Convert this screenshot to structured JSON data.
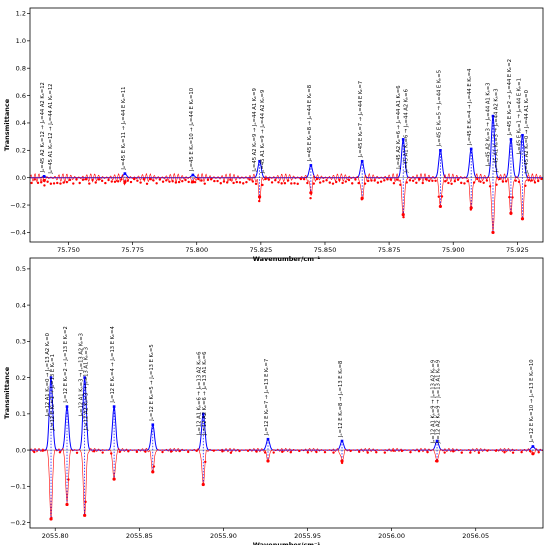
{
  "chart_data": [
    {
      "type": "line",
      "panel": "top",
      "xlabel": "Wavenumber/cm⁻¹",
      "ylabel": "Transmittance",
      "xlim": [
        75.735,
        75.935
      ],
      "ylim": [
        -0.47,
        1.24
      ],
      "xticks": [
        75.75,
        75.775,
        75.8,
        75.825,
        75.85,
        75.875,
        75.9,
        75.925
      ],
      "xtick_labels": [
        "75.750",
        "75.775",
        "75.800",
        "75.825",
        "75.850",
        "75.875",
        "75.900",
        "75.925"
      ],
      "yticks": [
        -0.4,
        -0.2,
        0.0,
        0.2,
        0.4,
        0.6,
        0.8,
        1.0,
        1.2
      ],
      "ytick_labels": [
        "−0.4",
        "−0.2",
        "0.0",
        "0.2",
        "0.4",
        "0.6",
        "0.8",
        "1.0",
        "1.2"
      ],
      "series": [
        {
          "role": "calculated",
          "color": "#0000ff",
          "peaks": [
            {
              "x": 75.7405,
              "y": 0.01
            },
            {
              "x": 75.772,
              "y": 0.03
            },
            {
              "x": 75.7985,
              "y": 0.02
            },
            {
              "x": 75.8245,
              "y": 0.12
            },
            {
              "x": 75.8445,
              "y": 0.09
            },
            {
              "x": 75.8645,
              "y": 0.12
            },
            {
              "x": 75.8805,
              "y": 0.28
            },
            {
              "x": 75.895,
              "y": 0.2
            },
            {
              "x": 75.907,
              "y": 0.21
            },
            {
              "x": 75.9155,
              "y": 0.45
            },
            {
              "x": 75.9225,
              "y": 0.28
            },
            {
              "x": 75.927,
              "y": 0.31
            }
          ]
        },
        {
          "role": "observed",
          "color": "#ff0000",
          "points": [
            {
              "x": 75.7405,
              "y": -0.02
            },
            {
              "x": 75.772,
              "y": -0.03
            },
            {
              "x": 75.7985,
              "y": -0.03
            },
            {
              "x": 75.8245,
              "y": -0.14
            },
            {
              "x": 75.8445,
              "y": -0.11
            },
            {
              "x": 75.8645,
              "y": -0.15
            },
            {
              "x": 75.8805,
              "y": -0.27
            },
            {
              "x": 75.895,
              "y": -0.21
            },
            {
              "x": 75.907,
              "y": -0.22
            },
            {
              "x": 75.9155,
              "y": -0.4
            },
            {
              "x": 75.9225,
              "y": -0.26
            },
            {
              "x": 75.927,
              "y": -0.3
            }
          ]
        }
      ],
      "annotations": [
        {
          "x": 75.7405,
          "text": "Jₑ=45 A2 Kₕ=12 → Jₑ=44 A2 Kₕ=12"
        },
        {
          "x": 75.7435,
          "text": "Jₑ=45 A1 Kₕ=12 → Jₑ=44 A1 Kₕ=12"
        },
        {
          "x": 75.772,
          "text": "Jₑ=45 E Kₕ=11 → Jₑ=44 E Kₕ=11"
        },
        {
          "x": 75.7985,
          "text": "Jₑ=45 E Kₕ=10 → Jₑ=44 E Kₕ=10"
        },
        {
          "x": 75.8232,
          "text": "Jₑ=45 A2 Kₕ=9 → Jₑ=44 A1 Kₕ=9"
        },
        {
          "x": 75.8262,
          "text": "Jₑ=45 A1 Kₕ=9 → Jₑ=44 A2 Kₕ=9"
        },
        {
          "x": 75.8445,
          "text": "Jₑ=45 E Kₕ=8 → Jₑ=44 E Kₕ=8"
        },
        {
          "x": 75.8645,
          "text": "Jₑ=45 E Kₕ=7 → Jₑ=44 E Kₕ=7"
        },
        {
          "x": 75.8792,
          "text": "Jₑ=45 A2 Kₕ=6 → Jₑ=44 A1 Kₕ=6"
        },
        {
          "x": 75.8822,
          "text": "Jₑ=45 A1 Kₕ=6 → Jₑ=44 A2 Kₕ=6"
        },
        {
          "x": 75.895,
          "text": "Jₑ=45 E Kₕ=5 → Jₑ=44 E Kₕ=5"
        },
        {
          "x": 75.907,
          "text": "Jₑ=45 E Kₕ=4 → Jₑ=44 E Kₕ=4"
        },
        {
          "x": 75.9142,
          "text": "Jₑ=45 A2 Kₕ=3 → Jₑ=44 A1 Kₕ=3"
        },
        {
          "x": 75.9172,
          "text": "Jₑ=45 A1 Kₕ=3 → Jₑ=44 A2 Kₕ=3"
        },
        {
          "x": 75.9225,
          "text": "Jₑ=45 E Kₕ=2 → Jₑ=44 E Kₕ=2"
        },
        {
          "x": 75.9262,
          "text": "Jₑ=45 E Kₕ=1 → Jₑ=44 E Kₕ=1"
        },
        {
          "x": 75.9292,
          "text": "Jₑ=45 A2 Kₕ=0 → Jₑ=44 A1 Kₕ=0"
        }
      ]
    },
    {
      "type": "line",
      "panel": "bottom",
      "xlabel": "Wavenumber/cm⁻¹",
      "ylabel": "Transmittance",
      "xlim": [
        2055.785,
        2056.09
      ],
      "ylim": [
        -0.215,
        0.53
      ],
      "xticks": [
        2055.8,
        2055.85,
        2055.9,
        2055.95,
        2056.0,
        2056.05
      ],
      "xtick_labels": [
        "2055.80",
        "2055.85",
        "2055.90",
        "2055.95",
        "2056.00",
        "2056.05"
      ],
      "yticks": [
        -0.2,
        -0.1,
        0.0,
        0.1,
        0.2,
        0.3,
        0.4,
        0.5
      ],
      "ytick_labels": [
        "−0.2",
        "−0.1",
        "0.0",
        "0.1",
        "0.2",
        "0.3",
        "0.4",
        "0.5"
      ],
      "series": [
        {
          "role": "calculated",
          "color": "#0000ff",
          "peaks": [
            {
              "x": 2055.7975,
              "y": 0.2
            },
            {
              "x": 2055.807,
              "y": 0.12
            },
            {
              "x": 2055.8175,
              "y": 0.2
            },
            {
              "x": 2055.835,
              "y": 0.12
            },
            {
              "x": 2055.858,
              "y": 0.07
            },
            {
              "x": 2055.888,
              "y": 0.1
            },
            {
              "x": 2055.9265,
              "y": 0.03
            },
            {
              "x": 2055.9705,
              "y": 0.025
            },
            {
              "x": 2056.027,
              "y": 0.025
            },
            {
              "x": 2056.084,
              "y": 0.01
            }
          ]
        },
        {
          "role": "observed",
          "color": "#ff0000",
          "points": [
            {
              "x": 2055.7975,
              "y": -0.19
            },
            {
              "x": 2055.807,
              "y": -0.15
            },
            {
              "x": 2055.8175,
              "y": -0.18
            },
            {
              "x": 2055.835,
              "y": -0.08
            },
            {
              "x": 2055.858,
              "y": -0.06
            },
            {
              "x": 2055.888,
              "y": -0.095
            },
            {
              "x": 2055.9265,
              "y": -0.03
            },
            {
              "x": 2055.9705,
              "y": -0.03
            },
            {
              "x": 2056.027,
              "y": -0.03
            },
            {
              "x": 2056.084,
              "y": -0.01
            }
          ]
        }
      ],
      "annotations": [
        {
          "x": 2055.7962,
          "text": "Jₑ=12 A1 Kₕ=0 → Jₑ=13 A2 Kₕ=0"
        },
        {
          "x": 2055.7992,
          "text": "Jₑ=12 E Kₕ=1 → Jₑ=13 E Kₕ=1"
        },
        {
          "x": 2055.807,
          "text": "Jₑ=12 E Kₕ=2 → Jₑ=13 E Kₕ=2"
        },
        {
          "x": 2055.8162,
          "text": "Jₑ=12 A1 Kₕ=3 → Jₑ=13 A2 Kₕ=3"
        },
        {
          "x": 2055.8192,
          "text": "Jₑ=12 A2 Kₕ=3 → Jₑ=13 A1 Kₕ=3"
        },
        {
          "x": 2055.835,
          "text": "Jₑ=12 E Kₕ=4 → Jₑ=13 E Kₕ=4"
        },
        {
          "x": 2055.858,
          "text": "Jₑ=12 E Kₕ=5 → Jₑ=13 E Kₕ=5"
        },
        {
          "x": 2055.8865,
          "text": "Jₑ=12 A1 Kₕ=6 → Jₑ=13 A2 Kₕ=6"
        },
        {
          "x": 2055.8895,
          "text": "Jₑ=12 A2 Kₕ=6 → Jₑ=13 A1 Kₕ=6"
        },
        {
          "x": 2055.9265,
          "text": "Jₑ=12 E Kₕ=7 → Jₑ=13 E Kₕ=7"
        },
        {
          "x": 2055.9705,
          "text": "Jₑ=12 E Kₕ=8 → Jₑ=13 E Kₕ=8"
        },
        {
          "x": 2056.0255,
          "text": "Jₑ=12 A1 Kₕ=9 → Jₑ=13 A2 Kₕ=9"
        },
        {
          "x": 2056.0285,
          "text": "Jₑ=12 A2 Kₕ=9 → Jₑ=13 A1 Kₕ=9"
        },
        {
          "x": 2056.084,
          "text": "Jₑ=12 E Kₕ=10 → Jₑ=13 E Kₕ=10"
        }
      ]
    }
  ]
}
